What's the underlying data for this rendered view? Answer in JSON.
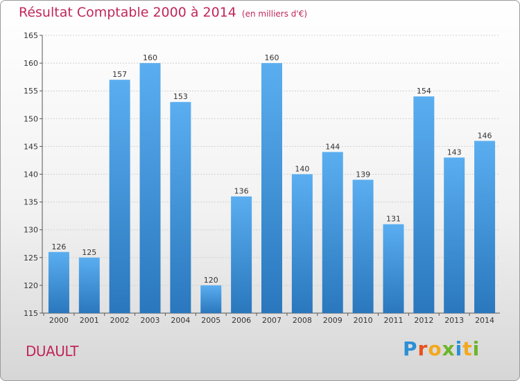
{
  "header": {
    "title": "Résultat Comptable 2000 à 2014",
    "subtitle": "(en milliers d'€)"
  },
  "footer": {
    "commune": "DUAULT",
    "logo": "Proxiti"
  },
  "colors": {
    "bar_top": "#5aaef0",
    "bar_bottom": "#2a77bd",
    "title": "#c0265b"
  },
  "chart_data": {
    "type": "bar",
    "title": "Résultat Comptable 2000 à 2014",
    "subtitle": "(en milliers d'€)",
    "categories": [
      "2000",
      "2001",
      "2002",
      "2003",
      "2004",
      "2005",
      "2006",
      "2007",
      "2008",
      "2009",
      "2010",
      "2011",
      "2012",
      "2013",
      "2014"
    ],
    "values": [
      126,
      125,
      157,
      160,
      153,
      120,
      136,
      160,
      140,
      144,
      139,
      131,
      154,
      143,
      146
    ],
    "ylim": [
      115,
      165
    ],
    "yticks": [
      115,
      120,
      125,
      130,
      135,
      140,
      145,
      150,
      155,
      160,
      165
    ],
    "grid": true,
    "legend": "none"
  }
}
